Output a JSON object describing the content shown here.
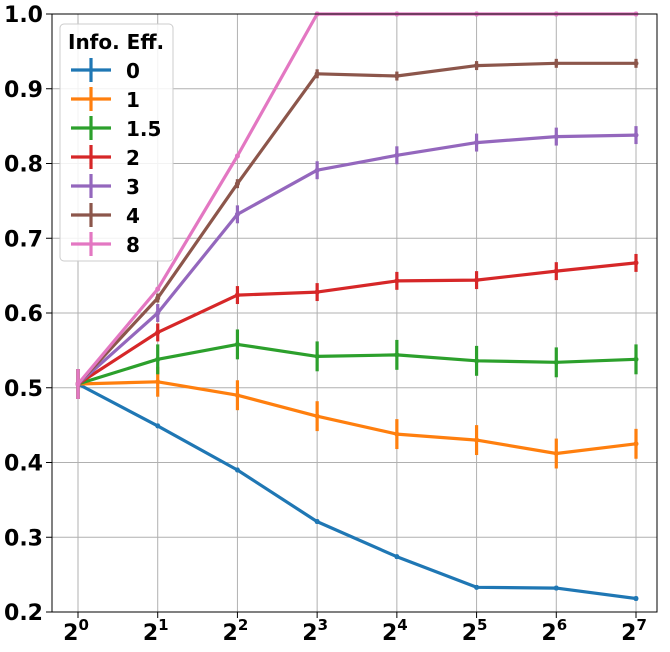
{
  "chart_data": {
    "type": "line",
    "title": "",
    "xlabel": "",
    "ylabel": "",
    "x_scale": "log2",
    "x": [
      1,
      2,
      4,
      8,
      16,
      32,
      64,
      128
    ],
    "x_tick_labels": [
      {
        "base": "2",
        "exp": "0"
      },
      {
        "base": "2",
        "exp": "1"
      },
      {
        "base": "2",
        "exp": "2"
      },
      {
        "base": "2",
        "exp": "3"
      },
      {
        "base": "2",
        "exp": "4"
      },
      {
        "base": "2",
        "exp": "5"
      },
      {
        "base": "2",
        "exp": "6"
      },
      {
        "base": "2",
        "exp": "7"
      }
    ],
    "ylim": [
      0.2,
      1.0
    ],
    "y_ticks": [
      0.2,
      0.3,
      0.4,
      0.5,
      0.6,
      0.7,
      0.8,
      0.9,
      1.0
    ],
    "y_tick_labels": [
      "0.2",
      "0.3",
      "0.4",
      "0.5",
      "0.6",
      "0.7",
      "0.8",
      "0.9",
      "1.0"
    ],
    "grid": true,
    "legend": {
      "title": "Info. Eff.",
      "placement": "top-left"
    },
    "series": [
      {
        "name": "0",
        "color": "#1f77b4",
        "values": [
          0.505,
          0.449,
          0.39,
          0.321,
          0.274,
          0.233,
          0.232,
          0.218
        ],
        "errors": [
          0.02,
          0.003,
          0.003,
          0.003,
          0.003,
          0.003,
          0.003,
          0.003
        ]
      },
      {
        "name": "1",
        "color": "#ff7f0e",
        "values": [
          0.505,
          0.508,
          0.49,
          0.462,
          0.438,
          0.43,
          0.412,
          0.425
        ],
        "errors": [
          0.02,
          0.02,
          0.02,
          0.02,
          0.02,
          0.02,
          0.02,
          0.02
        ]
      },
      {
        "name": "1.5",
        "color": "#2ca02c",
        "values": [
          0.505,
          0.538,
          0.558,
          0.542,
          0.544,
          0.536,
          0.534,
          0.538
        ],
        "errors": [
          0.02,
          0.02,
          0.02,
          0.02,
          0.02,
          0.02,
          0.02,
          0.02
        ]
      },
      {
        "name": "2",
        "color": "#d62728",
        "values": [
          0.505,
          0.574,
          0.624,
          0.628,
          0.643,
          0.644,
          0.656,
          0.667
        ],
        "errors": [
          0.02,
          0.012,
          0.012,
          0.012,
          0.012,
          0.012,
          0.012,
          0.012
        ]
      },
      {
        "name": "3",
        "color": "#9467bd",
        "values": [
          0.505,
          0.6,
          0.732,
          0.791,
          0.811,
          0.828,
          0.836,
          0.838
        ],
        "errors": [
          0.02,
          0.012,
          0.012,
          0.012,
          0.012,
          0.012,
          0.012,
          0.012
        ]
      },
      {
        "name": "4",
        "color": "#8c564b",
        "values": [
          0.505,
          0.62,
          0.773,
          0.92,
          0.917,
          0.931,
          0.934,
          0.934
        ],
        "errors": [
          0.02,
          0.006,
          0.006,
          0.006,
          0.006,
          0.006,
          0.006,
          0.006
        ]
      },
      {
        "name": "8",
        "color": "#e377c2",
        "values": [
          0.505,
          0.632,
          0.81,
          1.0,
          1.0,
          1.0,
          1.0,
          1.0
        ],
        "errors": [
          0.02,
          0.003,
          0.003,
          0.003,
          0.003,
          0.003,
          0.003,
          0.003
        ]
      }
    ]
  }
}
